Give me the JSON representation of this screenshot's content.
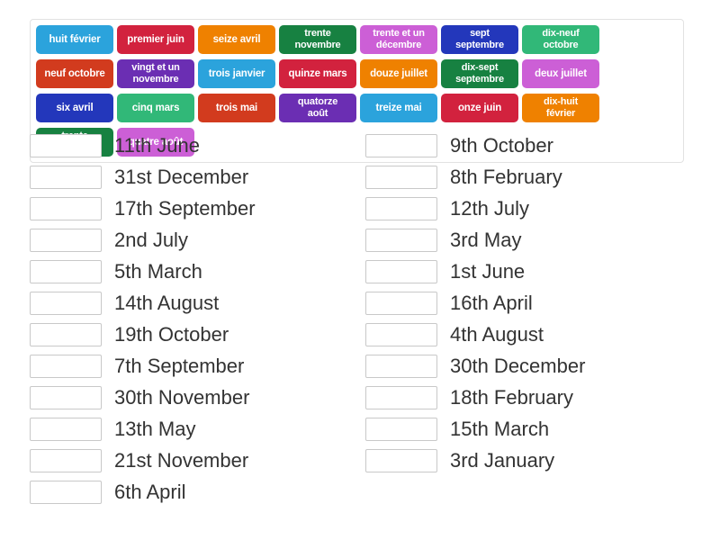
{
  "panel": {
    "tiles": [
      {
        "label": "huit février",
        "color": "#2ba3dc"
      },
      {
        "label": "premier juin",
        "color": "#d2223e"
      },
      {
        "label": "seize avril",
        "color": "#ef8100"
      },
      {
        "label": "trente\nnovembre",
        "color": "#178141"
      },
      {
        "label": "trente et un\ndécembre",
        "color": "#cc5fd6"
      },
      {
        "label": "sept\nseptembre",
        "color": "#2337bb"
      },
      {
        "label": "dix-neuf\noctobre",
        "color": "#31b878"
      },
      {
        "label": "neuf octobre",
        "color": "#d23b1e"
      },
      {
        "label": "vingt et un\nnovembre",
        "color": "#6b2eb3"
      },
      {
        "label": "trois janvier",
        "color": "#2ba3dc"
      },
      {
        "label": "quinze mars",
        "color": "#d2223e"
      },
      {
        "label": "douze juillet",
        "color": "#ef8100"
      },
      {
        "label": "dix-sept\nseptembre",
        "color": "#178141"
      },
      {
        "label": "deux juillet",
        "color": "#cc5fd6"
      },
      {
        "label": "six avril",
        "color": "#2337bb"
      },
      {
        "label": "cinq mars",
        "color": "#31b878"
      },
      {
        "label": "trois mai",
        "color": "#d23b1e"
      },
      {
        "label": "quatorze\naoût",
        "color": "#6b2eb3"
      },
      {
        "label": "treize mai",
        "color": "#2ba3dc"
      },
      {
        "label": "onze juin",
        "color": "#d2223e"
      },
      {
        "label": "dix-huit\nfévrier",
        "color": "#ef8100"
      },
      {
        "label": "trente\ndécembre",
        "color": "#178141"
      },
      {
        "label": "quatre août",
        "color": "#cc5fd6"
      }
    ]
  },
  "match_list": {
    "left": [
      "11th June",
      "31st December",
      "17th September",
      "2nd July",
      "5th March",
      "14th August",
      "19th October",
      "7th September",
      "30th November",
      "13th May",
      "21st November",
      "6th April"
    ],
    "right": [
      "9th October",
      "8th February",
      "12th July",
      "3rd May",
      "1st June",
      "16th April",
      "4th August",
      "30th December",
      "18th February",
      "15th March",
      "3rd January"
    ]
  }
}
